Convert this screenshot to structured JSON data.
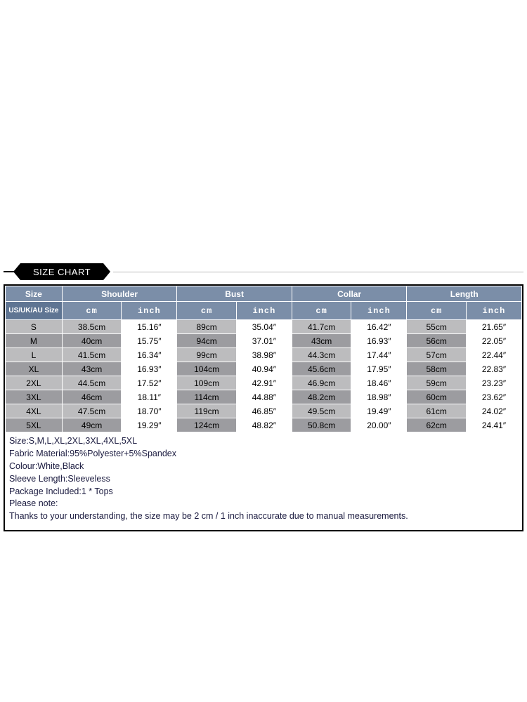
{
  "banner_label": "SIZE CHART",
  "table": {
    "header_bg": "#7b8ea8",
    "subheader_bg": "#5f7593",
    "row_alt1": "#bcbcbe",
    "row_alt2": "#9c9ca0",
    "col_size_label": "Size",
    "col_size_sub": "US/UK/AU Size",
    "measures": [
      {
        "label": "Shoulder",
        "cm_label": "cm",
        "in_label": "inch"
      },
      {
        "label": "Bust",
        "cm_label": "cm",
        "in_label": "inch"
      },
      {
        "label": "Collar",
        "cm_label": "cm",
        "in_label": "inch"
      },
      {
        "label": "Length",
        "cm_label": "cm",
        "in_label": "inch"
      }
    ],
    "rows": [
      {
        "size": "S",
        "cells": [
          "38.5cm",
          "15.16″",
          "89cm",
          "35.04″",
          "41.7cm",
          "16.42″",
          "55cm",
          "21.65″"
        ]
      },
      {
        "size": "M",
        "cells": [
          "40cm",
          "15.75″",
          "94cm",
          "37.01″",
          "43cm",
          "16.93″",
          "56cm",
          "22.05″"
        ]
      },
      {
        "size": "L",
        "cells": [
          "41.5cm",
          "16.34″",
          "99cm",
          "38.98″",
          "44.3cm",
          "17.44″",
          "57cm",
          "22.44″"
        ]
      },
      {
        "size": "XL",
        "cells": [
          "43cm",
          "16.93″",
          "104cm",
          "40.94″",
          "45.6cm",
          "17.95″",
          "58cm",
          "22.83″"
        ]
      },
      {
        "size": "2XL",
        "cells": [
          "44.5cm",
          "17.52″",
          "109cm",
          "42.91″",
          "46.9cm",
          "18.46″",
          "59cm",
          "23.23″"
        ]
      },
      {
        "size": "3XL",
        "cells": [
          "46cm",
          "18.11″",
          "114cm",
          "44.88″",
          "48.2cm",
          "18.98″",
          "60cm",
          "23.62″"
        ]
      },
      {
        "size": "4XL",
        "cells": [
          "47.5cm",
          "18.70″",
          "119cm",
          "46.85″",
          "49.5cm",
          "19.49″",
          "61cm",
          "24.02″"
        ]
      },
      {
        "size": "5XL",
        "cells": [
          "49cm",
          "19.29″",
          "124cm",
          "48.82″",
          "50.8cm",
          "20.00″",
          "62cm",
          "24.41″"
        ]
      }
    ]
  },
  "notes": [
    "Size:S,M,L,XL,2XL,3XL,4XL,5XL",
    "Fabric Material:95%Polyester+5%Spandex",
    "Colour:White,Black",
    "Sleeve Length:Sleeveless",
    "Package Included:1 * Tops",
    "Please note:",
    "Thanks to your understanding, the size may be 2 cm / 1 inch inaccurate due to manual measurements."
  ]
}
